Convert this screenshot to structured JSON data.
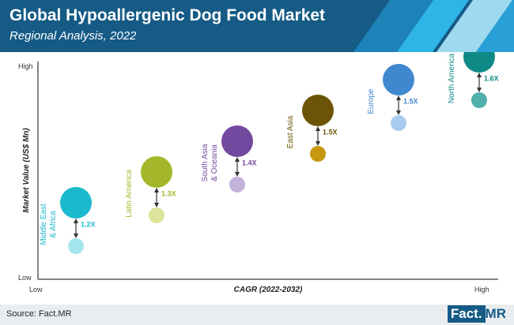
{
  "header": {
    "title": "Global Hypoallergenic Dog Food Market",
    "subtitle": "Regional Analysis, 2022"
  },
  "footer": {
    "source": "Source: Fact.MR",
    "logo_part1": "Fact.",
    "logo_part2": "MR"
  },
  "colors": {
    "header_bg": "#155b86",
    "axis": "#5a5a5a"
  },
  "chart_data": {
    "type": "scatter",
    "xlabel": "CAGR (2022-2032)",
    "ylabel": "Market Value (US$ Mn)",
    "x_ticks": {
      "low": "Low",
      "high": "High"
    },
    "y_ticks": {
      "low": "Low",
      "high": "High"
    },
    "grid": false,
    "series": [
      {
        "label": [
          "Middle East",
          "& Africa"
        ],
        "growth": "1.2X",
        "rank": 1,
        "color": "#1bb9cc",
        "light": "#a5e6ee"
      },
      {
        "label": [
          "Latin America"
        ],
        "growth": "1.3X",
        "rank": 2,
        "color": "#a4b72b",
        "light": "#dbe49a"
      },
      {
        "label": [
          "South Asia",
          "& Oceania"
        ],
        "growth": "1.4X",
        "rank": 3,
        "color": "#73489f",
        "light": "#c3b2da"
      },
      {
        "label": [
          "East Asia"
        ],
        "growth": "1.5X",
        "rank": 4,
        "color": "#6b5406",
        "light": "#c6980f"
      },
      {
        "label": [
          "Europe"
        ],
        "growth": "1.5X",
        "rank": 5,
        "color": "#3f88cf",
        "light": "#a9cbee"
      },
      {
        "label": [
          "North America"
        ],
        "growth": "1.6X",
        "rank": 6,
        "color": "#0f8986",
        "light": "#4fb0ac"
      }
    ]
  }
}
